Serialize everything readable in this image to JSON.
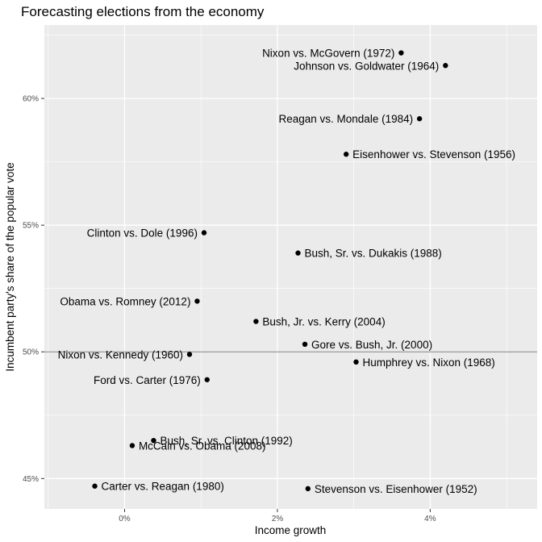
{
  "chart_data": {
    "type": "scatter",
    "title": "Forecasting elections from the economy",
    "xlabel": "Income growth",
    "ylabel": "Incumbent party's share of the popular vote",
    "xlim": [
      -1.05,
      5.4
    ],
    "ylim": [
      43.8,
      62.9
    ],
    "x_ticks": [
      {
        "value": 0,
        "label": "0%"
      },
      {
        "value": 2,
        "label": "2%"
      },
      {
        "value": 4,
        "label": "4%"
      }
    ],
    "y_ticks": [
      {
        "value": 45,
        "label": "45%"
      },
      {
        "value": 50,
        "label": "50%"
      },
      {
        "value": 55,
        "label": "55%"
      },
      {
        "value": 60,
        "label": "60%"
      }
    ],
    "reference_line_y": 50,
    "grid": true,
    "colors": {
      "panel": "#ebebeb",
      "grid": "#ffffff",
      "point": "#000000",
      "reference_line": "#808080"
    },
    "points": [
      {
        "label": "Stevenson vs. Eisenhower (1952)",
        "x": 2.4,
        "y": 44.6,
        "side": "right"
      },
      {
        "label": "Eisenhower vs. Stevenson (1956)",
        "x": 2.9,
        "y": 57.8,
        "side": "right"
      },
      {
        "label": "Nixon vs. Kennedy (1960)",
        "x": 0.85,
        "y": 49.9,
        "side": "left"
      },
      {
        "label": "Johnson vs. Goldwater (1964)",
        "x": 4.2,
        "y": 61.3,
        "side": "left"
      },
      {
        "label": "Humphrey vs. Nixon (1968)",
        "x": 3.03,
        "y": 49.6,
        "side": "right"
      },
      {
        "label": "Nixon vs. McGovern (1972)",
        "x": 3.62,
        "y": 61.8,
        "side": "left"
      },
      {
        "label": "Ford vs. Carter (1976)",
        "x": 1.08,
        "y": 48.9,
        "side": "left"
      },
      {
        "label": "Carter vs. Reagan (1980)",
        "x": -0.39,
        "y": 44.7,
        "side": "right"
      },
      {
        "label": "Reagan vs. Mondale (1984)",
        "x": 3.86,
        "y": 59.2,
        "side": "left"
      },
      {
        "label": "Bush, Sr. vs. Dukakis (1988)",
        "x": 2.27,
        "y": 53.9,
        "side": "right"
      },
      {
        "label": "Bush, Sr. vs. Clinton (1992)",
        "x": 0.38,
        "y": 46.5,
        "side": "right"
      },
      {
        "label": "Clinton vs. Dole (1996)",
        "x": 1.04,
        "y": 54.7,
        "side": "left"
      },
      {
        "label": "Gore vs. Bush, Jr. (2000)",
        "x": 2.36,
        "y": 50.3,
        "side": "right"
      },
      {
        "label": "Bush, Jr. vs. Kerry (2004)",
        "x": 1.72,
        "y": 51.2,
        "side": "right"
      },
      {
        "label": "McCain vs. Obama (2008)",
        "x": 0.1,
        "y": 46.3,
        "side": "right"
      },
      {
        "label": "Obama vs. Romney (2012)",
        "x": 0.95,
        "y": 52.0,
        "side": "left"
      }
    ]
  }
}
